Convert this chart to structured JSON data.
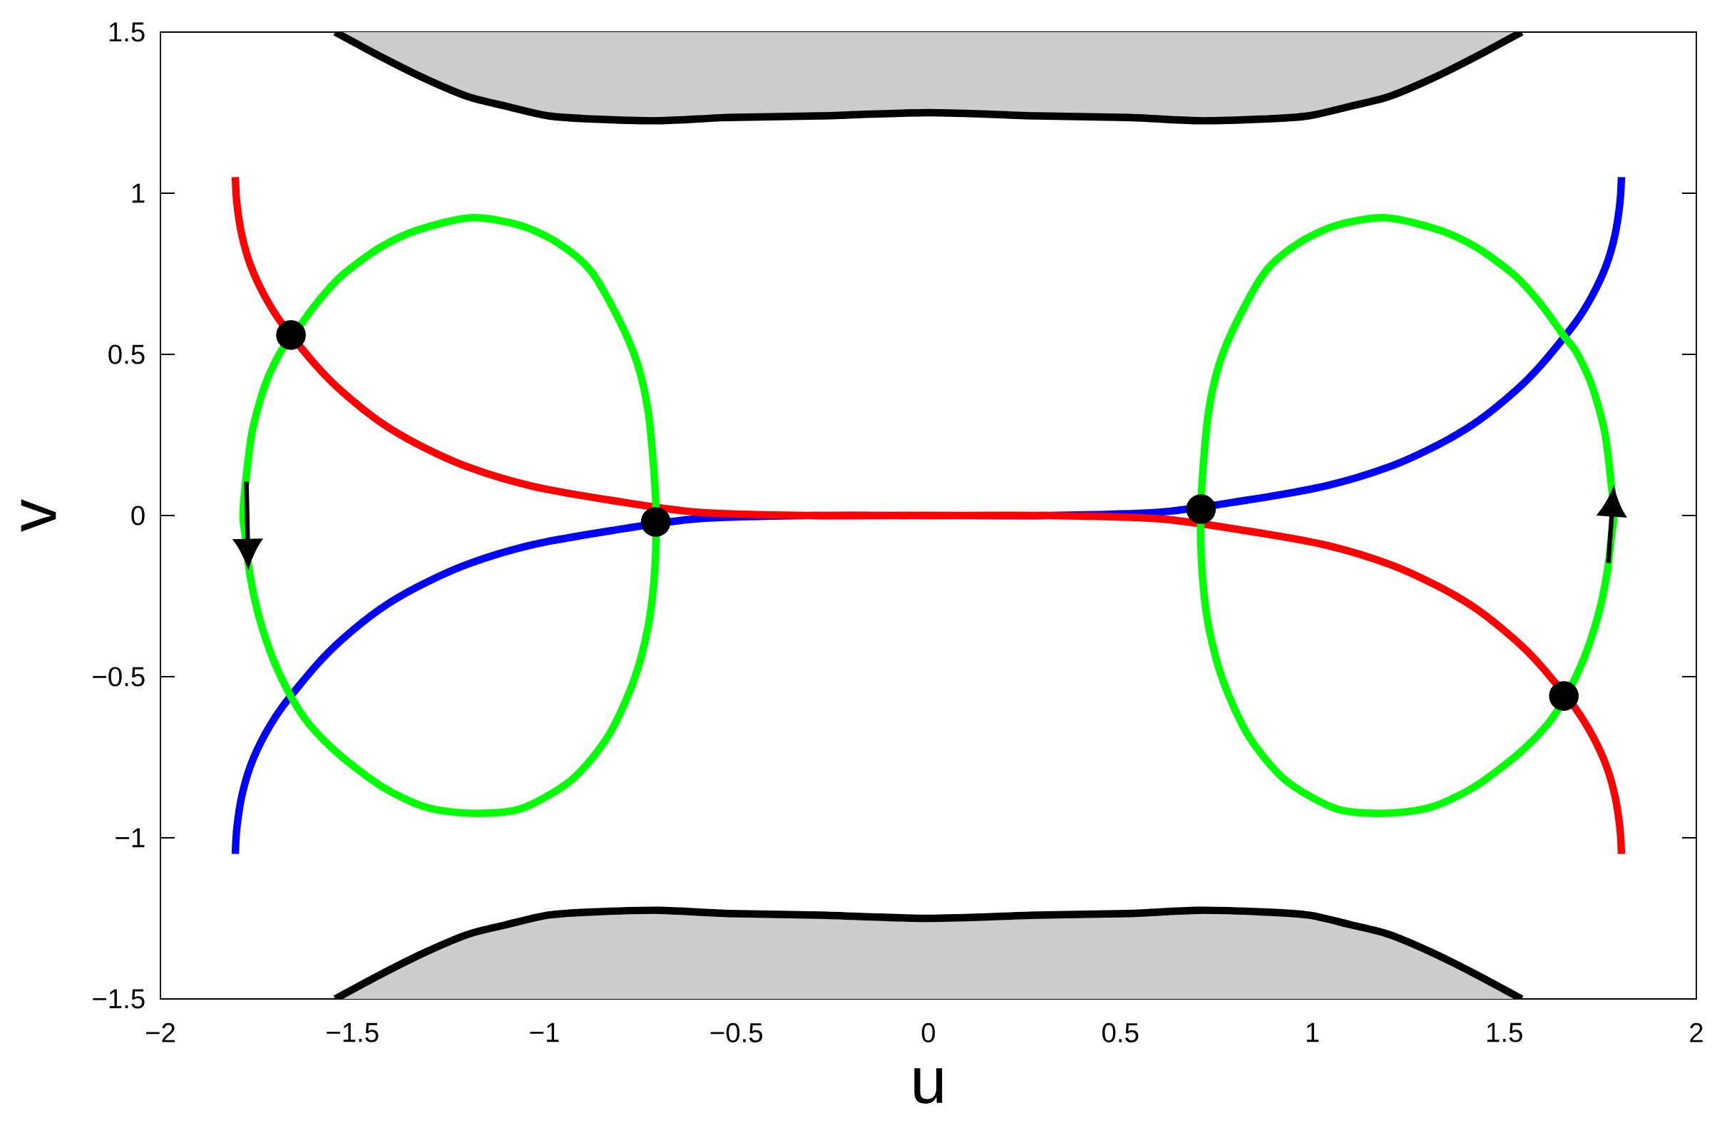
{
  "chart_data": {
    "type": "line",
    "xlabel": "u",
    "ylabel": "v",
    "xlim": [
      -2,
      2
    ],
    "ylim": [
      -1.5,
      1.5
    ],
    "xticks": [
      {
        "value": -2,
        "label": "−2"
      },
      {
        "value": -1.5,
        "label": "−1.5"
      },
      {
        "value": -1,
        "label": "−1"
      },
      {
        "value": -0.5,
        "label": "−0.5"
      },
      0,
      0.5,
      1,
      1.5,
      2
    ],
    "yticks": [
      {
        "value": -1.5,
        "label": "−1.5"
      },
      {
        "value": -1,
        "label": "−1"
      },
      {
        "value": -0.5,
        "label": "−0.5"
      },
      0,
      0.5,
      1,
      1.5
    ],
    "series": [
      {
        "color": "#000000",
        "x": [
          -1.545,
          -1.42,
          -1.31,
          -1.2,
          -1.1,
          -0.99,
          -0.87,
          -0.7,
          -0.52,
          -0.28,
          0,
          0.28,
          0.52,
          0.7,
          0.87,
          0.99,
          1.1,
          1.2,
          1.31,
          1.42,
          1.545
        ],
        "values": [
          1.5,
          1.42,
          1.355,
          1.3,
          1.27,
          1.24,
          1.23,
          1.225,
          1.235,
          1.24,
          1.25,
          1.24,
          1.235,
          1.225,
          1.23,
          1.24,
          1.27,
          1.3,
          1.355,
          1.42,
          1.5
        ],
        "lower": [
          1.5,
          1.42,
          1.355,
          1.3,
          1.27,
          1.24,
          1.23,
          1.225,
          1.235,
          1.24,
          1.25,
          1.24,
          1.235,
          1.225,
          1.23,
          1.24,
          1.27,
          1.3,
          1.355,
          1.42,
          1.5
        ],
        "upper": [
          1.5,
          1.5,
          1.5,
          1.5,
          1.5,
          1.5,
          1.5,
          1.5,
          1.5,
          1.5,
          1.5,
          1.5,
          1.5,
          1.5,
          1.5,
          1.5,
          1.5,
          1.5,
          1.5,
          1.5,
          1.5
        ]
      },
      {
        "color": "#000000",
        "x": [
          -1.545,
          -1.42,
          -1.31,
          -1.2,
          -1.1,
          -0.99,
          -0.87,
          -0.7,
          -0.52,
          -0.28,
          0,
          0.28,
          0.52,
          0.7,
          0.87,
          0.99,
          1.1,
          1.2,
          1.31,
          1.42,
          1.545
        ],
        "values": [
          -1.5,
          -1.42,
          -1.355,
          -1.3,
          -1.27,
          -1.24,
          -1.23,
          -1.225,
          -1.235,
          -1.24,
          -1.25,
          -1.24,
          -1.235,
          -1.225,
          -1.23,
          -1.24,
          -1.27,
          -1.3,
          -1.355,
          -1.42,
          -1.5
        ],
        "lower": [
          -1.5,
          -1.5,
          -1.5,
          -1.5,
          -1.5,
          -1.5,
          -1.5,
          -1.5,
          -1.5,
          -1.5,
          -1.5,
          -1.5,
          -1.5,
          -1.5,
          -1.5,
          -1.5,
          -1.5,
          -1.5,
          -1.5,
          -1.5,
          -1.5
        ],
        "upper": [
          -1.5,
          -1.42,
          -1.355,
          -1.3,
          -1.27,
          -1.24,
          -1.23,
          -1.225,
          -1.235,
          -1.24,
          -1.25,
          -1.24,
          -1.235,
          -1.225,
          -1.23,
          -1.24,
          -1.27,
          -1.3,
          -1.355,
          -1.42,
          -1.5
        ]
      },
      {
        "color": "#0000ff",
        "x": [
          -1.805,
          -1.801,
          -1.788,
          -1.765,
          -1.728,
          -1.682,
          -1.595,
          -1.529,
          -1.43,
          -1.33,
          -1.198,
          -1.032,
          -0.826,
          -0.6,
          -0.3,
          0,
          0.3,
          0.6,
          0.826,
          1.032,
          1.198,
          1.33,
          1.43,
          1.529,
          1.595,
          1.682,
          1.728,
          1.765,
          1.788,
          1.801,
          1.805
        ],
        "values": [
          -1.05,
          -0.97,
          -0.87,
          -0.775,
          -0.68,
          -0.593,
          -0.466,
          -0.387,
          -0.292,
          -0.221,
          -0.15,
          -0.091,
          -0.047,
          -0.01,
          0,
          0,
          0,
          0.01,
          0.047,
          0.091,
          0.15,
          0.221,
          0.292,
          0.387,
          0.466,
          0.593,
          0.68,
          0.775,
          0.87,
          0.97,
          1.05
        ]
      },
      {
        "color": "#ff0000",
        "x": [
          -1.805,
          -1.801,
          -1.788,
          -1.765,
          -1.728,
          -1.682,
          -1.595,
          -1.529,
          -1.43,
          -1.33,
          -1.198,
          -1.032,
          -0.826,
          -0.6,
          -0.3,
          0,
          0.3,
          0.6,
          0.826,
          1.032,
          1.198,
          1.33,
          1.43,
          1.529,
          1.595,
          1.682,
          1.728,
          1.765,
          1.788,
          1.801,
          1.805
        ],
        "values": [
          1.05,
          0.97,
          0.87,
          0.775,
          0.68,
          0.593,
          0.466,
          0.387,
          0.292,
          0.221,
          0.15,
          0.091,
          0.047,
          0.01,
          0,
          0,
          0,
          -0.01,
          -0.047,
          -0.091,
          -0.15,
          -0.221,
          -0.292,
          -0.387,
          -0.466,
          -0.593,
          -0.68,
          -0.775,
          -0.87,
          -0.97,
          -1.05
        ]
      },
      {
        "type": "scatter",
        "color": "#000000",
        "marker": "circle",
        "x": [
          -1.66,
          -0.71,
          0.71,
          1.655
        ],
        "values": [
          0.56,
          -0.02,
          0.02,
          -0.56
        ]
      }
    ]
  }
}
